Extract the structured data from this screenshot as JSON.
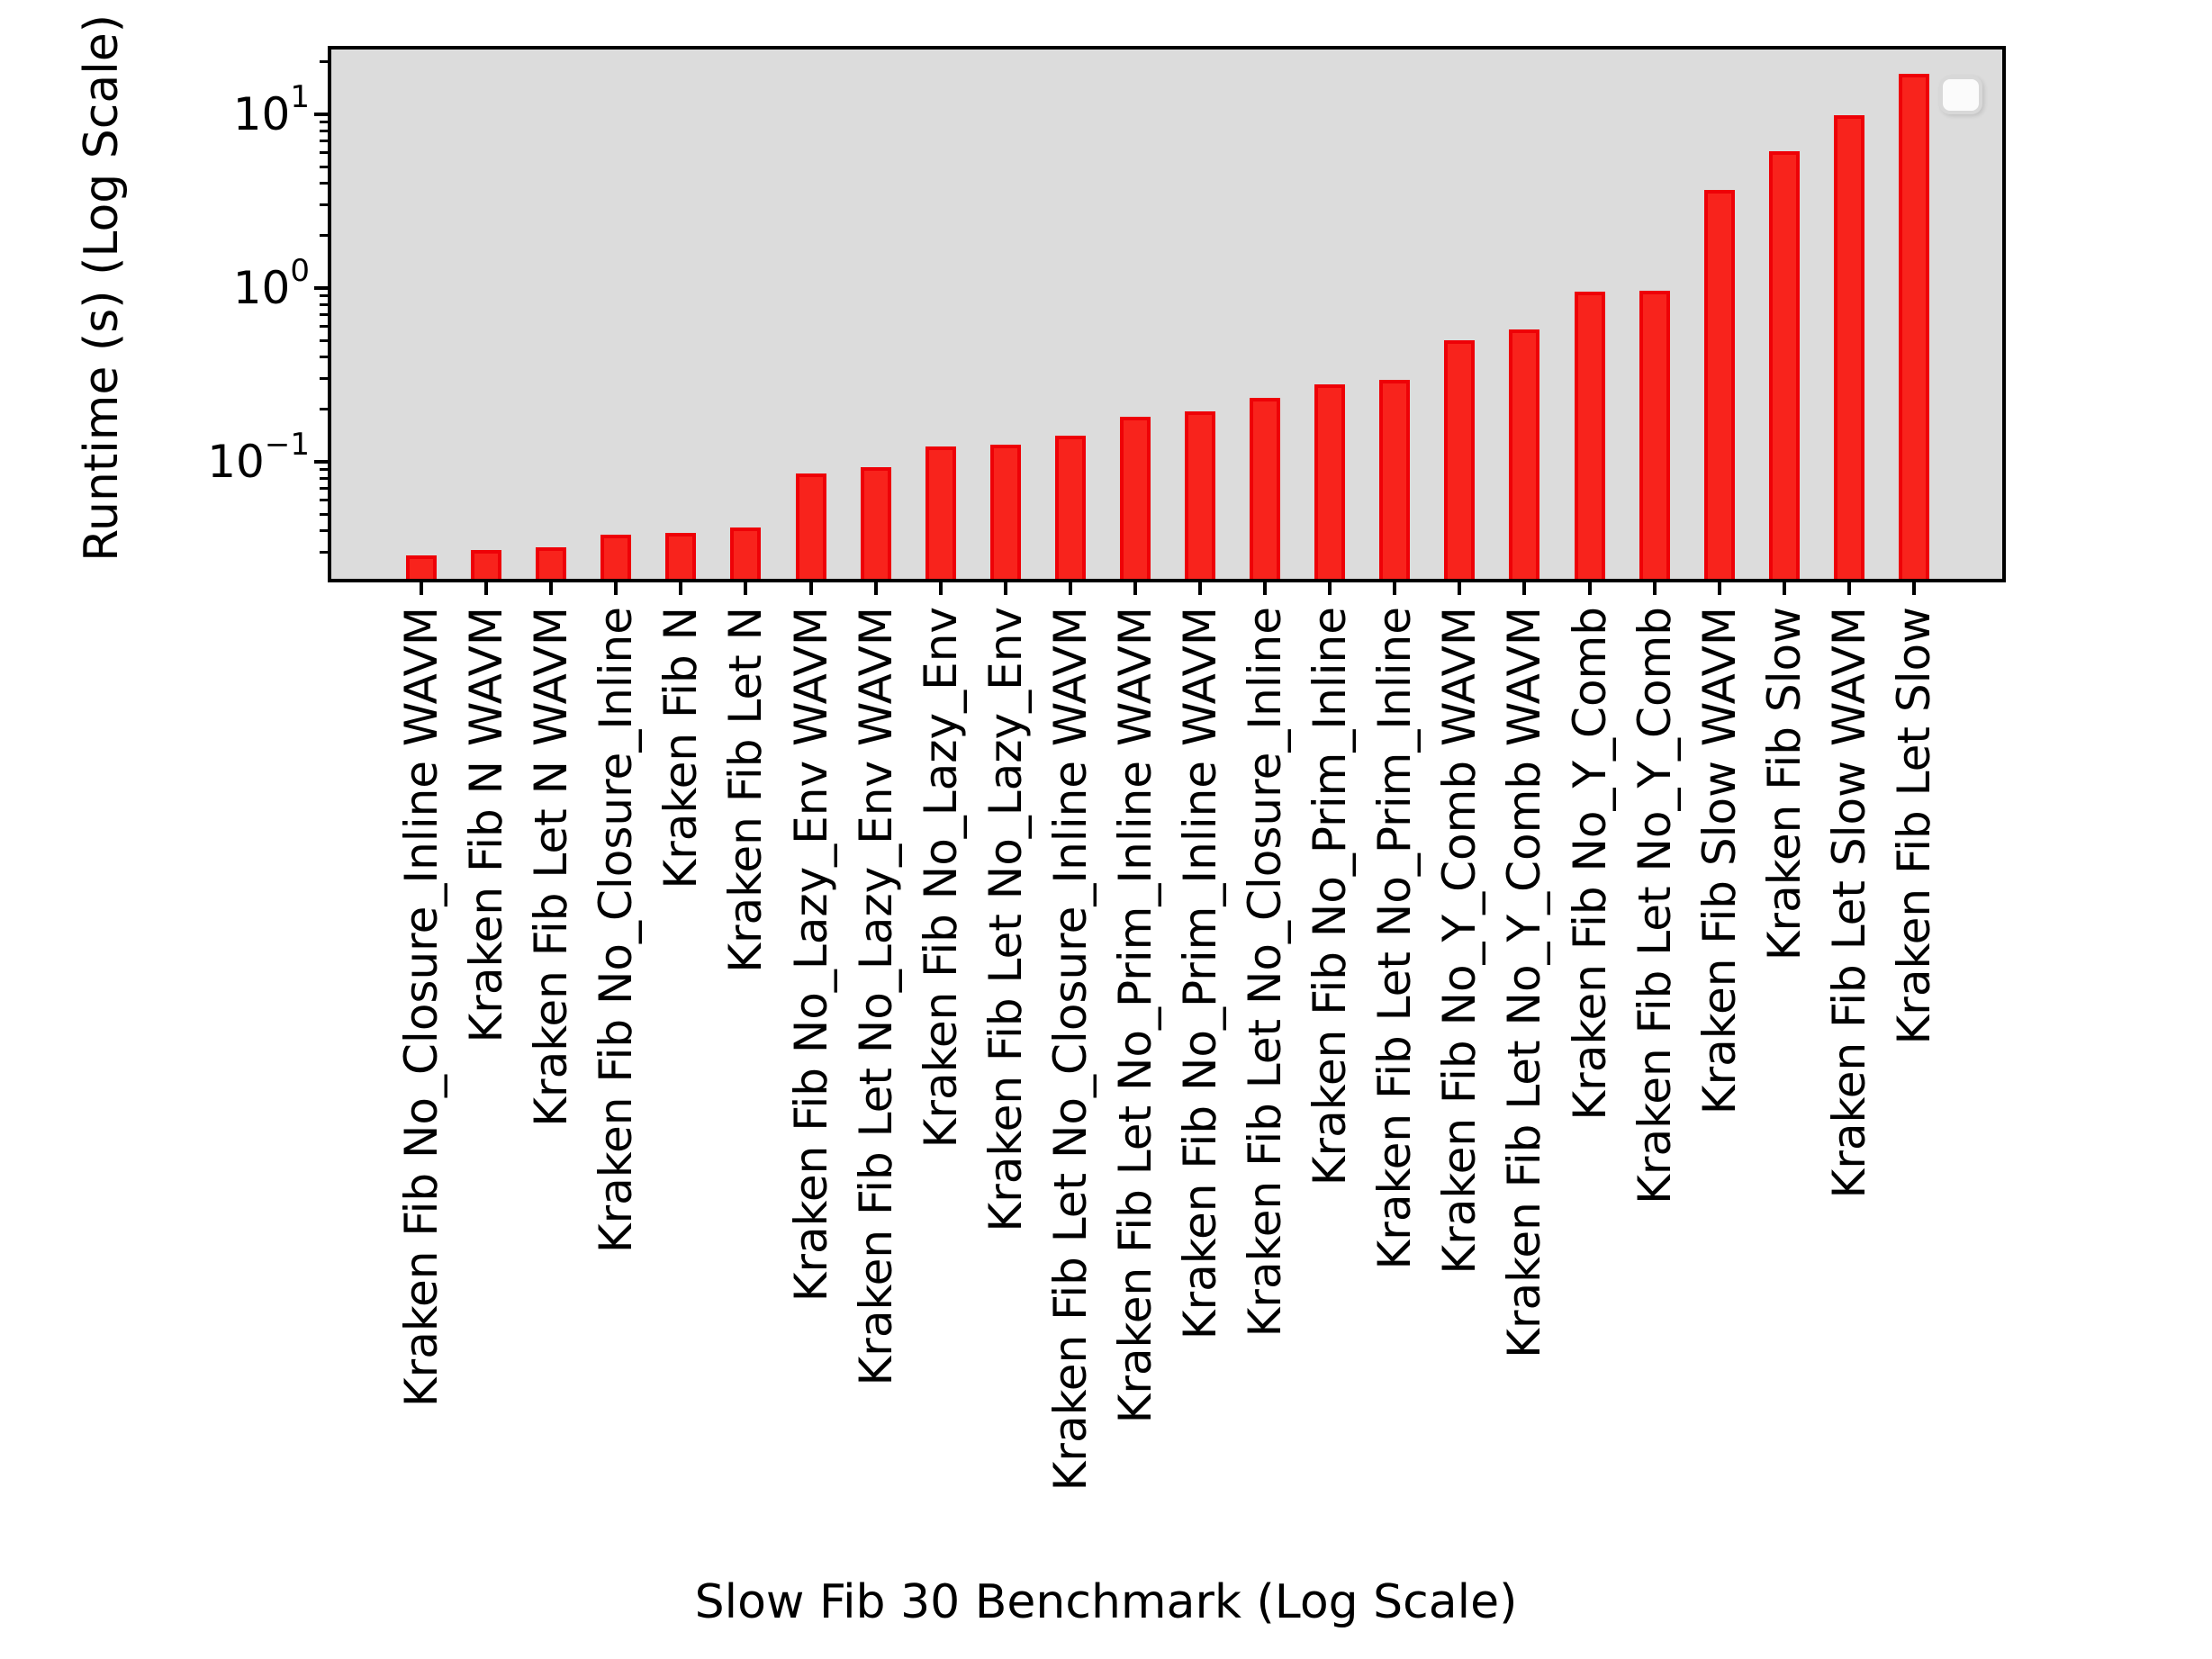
{
  "figure": {
    "background": "#ffffff",
    "plot_background": "#dcdcdc",
    "bar_fill": "#f8231c",
    "bar_edge": "#ee0107",
    "spine_color": "#000000",
    "legend": {
      "visible": true,
      "entries": [],
      "fill": "#fbfbfb",
      "border": "#d8d8d8"
    }
  },
  "chart_data": {
    "type": "bar",
    "title": "",
    "xlabel": "Slow Fib 30 Benchmark (Log Scale)",
    "ylabel": "Runtime (s) (Log Scale)",
    "y_scale": "log",
    "ylim": [
      0.0212,
      23.6
    ],
    "grid": false,
    "legend_position": "upper right",
    "y_major_tick_exponents": [
      -1,
      0,
      1
    ],
    "categories": [
      "Kraken Fib No_Closure_Inline WAVM",
      "Kraken Fib N WAVM",
      "Kraken Fib Let N WAVM",
      "Kraken Fib No_Closure_Inline",
      "Kraken Fib N",
      "Kraken Fib Let N",
      "Kraken Fib No_Lazy_Env WAVM",
      "Kraken Fib Let No_Lazy_Env WAVM",
      "Kraken Fib No_Lazy_Env",
      "Kraken Fib Let No_Lazy_Env",
      "Kraken Fib Let No_Closure_Inline WAVM",
      "Kraken Fib Let No_Prim_Inline WAVM",
      "Kraken Fib No_Prim_Inline WAVM",
      "Kraken Fib Let No_Closure_Inline",
      "Kraken Fib No_Prim_Inline",
      "Kraken Fib Let No_Prim_Inline",
      "Kraken Fib No_Y_Comb WAVM",
      "Kraken Fib Let No_Y_Comb WAVM",
      "Kraken Fib No_Y_Comb",
      "Kraken Fib Let No_Y_Comb",
      "Kraken Fib Slow WAVM",
      "Kraken Fib Slow",
      "Kraken Fib Let Slow WAVM",
      "Kraken Fib Let Slow"
    ],
    "values": [
      0.029,
      0.031,
      0.032,
      0.038,
      0.039,
      0.042,
      0.086,
      0.093,
      0.123,
      0.125,
      0.142,
      0.182,
      0.194,
      0.234,
      0.28,
      0.295,
      0.5,
      0.58,
      0.95,
      0.96,
      3.65,
      6.1,
      9.9,
      17.0
    ]
  }
}
